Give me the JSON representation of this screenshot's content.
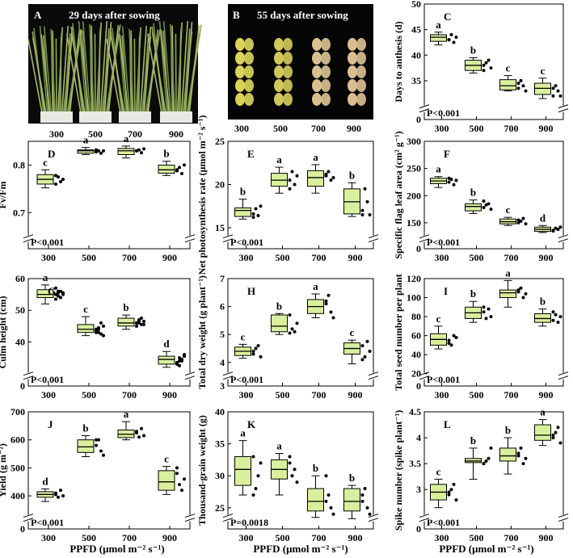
{
  "photos": [
    {
      "letter": "A",
      "caption": "29 days after sowing",
      "ticks": [
        "300",
        "500",
        "700",
        "900"
      ]
    },
    {
      "letter": "B",
      "caption": "55 days after sowing",
      "ticks": [
        "300",
        "500",
        "700",
        "900"
      ]
    }
  ],
  "xlabel": "PPFD (μmol m⁻² s⁻¹)",
  "chart_data": [
    {
      "panel": "C",
      "type": "box",
      "ylabel": "Days to anthesis (d)",
      "ylim": [
        0,
        50
      ],
      "break": [
        1,
        30
      ],
      "yticks": [
        0,
        35,
        40,
        45,
        50
      ],
      "categories": [
        "300",
        "500",
        "700",
        "900"
      ],
      "median": [
        43.5,
        38,
        34,
        33.5
      ],
      "q1": [
        42.7,
        37,
        33.2,
        32.3
      ],
      "q3": [
        44,
        39,
        35.2,
        34.5
      ],
      "whisker_low": [
        42,
        36.5,
        33,
        31.5
      ],
      "whisker_high": [
        44.5,
        39.5,
        36,
        35.5
      ],
      "letters": [
        "a",
        "b",
        "c",
        "c"
      ],
      "p_value": "P<0.001",
      "points": [
        [
          43,
          44,
          42.5,
          43.5,
          43
        ],
        [
          37,
          38.5,
          39,
          37.5,
          38
        ],
        [
          33.5,
          35,
          34,
          33,
          34.5
        ],
        [
          32,
          34,
          33,
          32,
          33.5
        ]
      ]
    },
    {
      "panel": "D",
      "type": "box",
      "ylabel": "Fv/Fm",
      "ylim": [
        0,
        0.85
      ],
      "break": [
        0.02,
        0.65
      ],
      "yticks": [
        0.7,
        0.8
      ],
      "categories": [
        "300",
        "500",
        "700",
        "900"
      ],
      "median": [
        0.77,
        0.83,
        0.83,
        0.79
      ],
      "q1": [
        0.76,
        0.825,
        0.822,
        0.783
      ],
      "q3": [
        0.78,
        0.832,
        0.835,
        0.8
      ],
      "whisker_low": [
        0.752,
        0.822,
        0.815,
        0.778
      ],
      "whisker_high": [
        0.79,
        0.837,
        0.84,
        0.808
      ],
      "letters": [
        "c",
        "a",
        "a",
        "b"
      ],
      "p_value": "P<0.001",
      "points": [
        [
          0.76,
          0.775,
          0.765,
          0.77,
          0.778
        ],
        [
          0.828,
          0.83,
          0.825,
          0.83,
          0.832
        ],
        [
          0.83,
          0.832,
          0.826,
          0.834,
          0.83
        ],
        [
          0.79,
          0.795,
          0.782,
          0.8,
          0.788
        ]
      ]
    },
    {
      "panel": "E",
      "type": "box",
      "ylabel": "Net photosynthesis rate (μmol m⁻² s⁻¹)",
      "ylim": [
        0,
        25
      ],
      "break": [
        0.5,
        14
      ],
      "yticks": [
        15,
        20,
        25
      ],
      "categories": [
        "300",
        "500",
        "700",
        "900"
      ],
      "median": [
        17,
        20.5,
        20.8,
        18
      ],
      "q1": [
        16.3,
        19.8,
        19.8,
        16.6
      ],
      "q3": [
        17.3,
        21.3,
        21.6,
        19.5
      ],
      "whisker_low": [
        16,
        19,
        19,
        16.3
      ],
      "whisker_high": [
        18.3,
        22,
        22.3,
        20.2
      ],
      "letters": [
        "b",
        "a",
        "a",
        "b"
      ],
      "p_value": "P<0.001",
      "points": [
        [
          16.6,
          17.2,
          16.4,
          17.5,
          16.2
        ],
        [
          20.5,
          21.5,
          20,
          21,
          19.5
        ],
        [
          21,
          21.5,
          20.5,
          20.8,
          21.2
        ],
        [
          17,
          19.5,
          18,
          16.5,
          16.5
        ]
      ]
    },
    {
      "panel": "F",
      "type": "box",
      "ylabel": "Specific flag leaf area (cm² g⁻¹)",
      "ylim": [
        0,
        300
      ],
      "break": [
        6,
        125
      ],
      "yticks": [
        0,
        150,
        200,
        250,
        300
      ],
      "categories": [
        "300",
        "500",
        "700",
        "900"
      ],
      "median": [
        227,
        180,
        152,
        138
      ],
      "q1": [
        222,
        172,
        148,
        134
      ],
      "q3": [
        232,
        185,
        157,
        142
      ],
      "whisker_low": [
        215,
        167,
        145,
        132
      ],
      "whisker_high": [
        235,
        192,
        160,
        145
      ],
      "letters": [
        "a",
        "b",
        "c",
        "d"
      ],
      "p_value": "P<0.001",
      "points": [
        [
          225,
          230,
          220,
          228,
          232
        ],
        [
          178,
          183,
          185,
          175,
          190
        ],
        [
          150,
          153,
          158,
          148,
          155
        ],
        [
          136,
          140,
          138,
          142,
          135
        ]
      ]
    },
    {
      "panel": "G",
      "type": "box",
      "ylabel": "Culm height (cm)",
      "ylim": [
        0,
        60
      ],
      "break": [
        1,
        30
      ],
      "yticks": [
        0,
        40,
        50,
        60
      ],
      "categories": [
        "300",
        "500",
        "700",
        "900"
      ],
      "median": [
        55,
        44,
        46,
        34.5
      ],
      "q1": [
        54,
        43,
        45,
        33
      ],
      "q3": [
        56.5,
        45.5,
        47.5,
        35.5
      ],
      "whisker_low": [
        52,
        42,
        44,
        32
      ],
      "whisker_high": [
        58,
        48,
        48.5,
        37
      ],
      "letters": [
        "a",
        "c",
        "b",
        "d"
      ],
      "p_value": "P<0.001",
      "points": [
        [
          55,
          56,
          54,
          55.5,
          57,
          54.5,
          56,
          55,
          53.5,
          55.5
        ],
        [
          43,
          44.5,
          42.5,
          45,
          43.5,
          44,
          46,
          42,
          44,
          43
        ],
        [
          46,
          47,
          45.5,
          46.5,
          45,
          46,
          47.5,
          45.5,
          46,
          46.5
        ],
        [
          33,
          35,
          34,
          36,
          33.5,
          32.5,
          34.5,
          35.5,
          33,
          34
        ]
      ]
    },
    {
      "panel": "H",
      "type": "box",
      "ylabel": "Total dry weight (g plant⁻¹)",
      "ylim": [
        3,
        7
      ],
      "break": [
        3.05,
        3.6
      ],
      "yticks": [
        3,
        4,
        5,
        6,
        7
      ],
      "categories": [
        "300",
        "500",
        "700",
        "900"
      ],
      "median": [
        4.4,
        5.3,
        6,
        4.5
      ],
      "q1": [
        4.25,
        5.1,
        5.75,
        4.3
      ],
      "q3": [
        4.55,
        5.7,
        6.25,
        4.7
      ],
      "whisker_low": [
        4.15,
        5,
        5.6,
        3.95
      ],
      "whisker_high": [
        4.65,
        5.75,
        6.45,
        4.8
      ],
      "letters": [
        "c",
        "b",
        "a",
        "c"
      ],
      "p_value": "P<0.001",
      "points": [
        [
          4.3,
          4.5,
          4.6,
          4.2,
          4.4
        ],
        [
          5.7,
          5.2,
          5.1,
          5.4,
          5.05
        ],
        [
          6.2,
          6.4,
          5.8,
          5.6,
          6.1
        ],
        [
          4.6,
          4.2,
          4.75,
          4.4,
          4.1
        ]
      ]
    },
    {
      "panel": "I",
      "type": "box",
      "ylabel": "Total seed number per plant",
      "ylim": [
        0,
        120
      ],
      "break": [
        2,
        20
      ],
      "yticks": [
        0,
        20,
        40,
        60,
        80,
        100,
        120
      ],
      "categories": [
        "300",
        "500",
        "700",
        "900"
      ],
      "median": [
        56,
        84,
        105,
        78
      ],
      "q1": [
        50,
        78,
        100,
        74
      ],
      "q3": [
        62,
        90,
        108,
        83
      ],
      "whisker_low": [
        46,
        74,
        90,
        70
      ],
      "whisker_high": [
        70,
        96,
        118,
        88
      ],
      "letters": [
        "c",
        "b",
        "a",
        "b"
      ],
      "p_value": "P<0.001",
      "points": [
        [
          55,
          50,
          60,
          58,
          52
        ],
        [
          85,
          78,
          88,
          80,
          90
        ],
        [
          106,
          110,
          100,
          104,
          108
        ],
        [
          76,
          82,
          74,
          80,
          85
        ]
      ]
    },
    {
      "panel": "J",
      "type": "box",
      "ylabel": "Yield (g m⁻²)",
      "ylim": [
        0,
        700
      ],
      "break": [
        10,
        330
      ],
      "yticks": [
        0,
        400,
        500,
        600,
        700
      ],
      "categories": [
        "300",
        "500",
        "700",
        "900"
      ],
      "median": [
        405,
        575,
        620,
        450
      ],
      "q1": [
        395,
        555,
        608,
        420
      ],
      "q3": [
        415,
        600,
        635,
        490
      ],
      "whisker_low": [
        380,
        540,
        600,
        405
      ],
      "whisker_high": [
        425,
        615,
        665,
        505
      ],
      "letters": [
        "d",
        "b",
        "a",
        "c"
      ],
      "p_value": "P<0.001",
      "points": [
        [
          410,
          395,
          420,
          400,
          405
        ],
        [
          580,
          600,
          560,
          545,
          600
        ],
        [
          625,
          610,
          640,
          615,
          630
        ],
        [
          480,
          440,
          420,
          460,
          500
        ]
      ]
    },
    {
      "panel": "K",
      "type": "box",
      "ylabel": "Thousand-grain weight (g)",
      "ylim": [
        23,
        40
      ],
      "break": [
        23.2,
        23.8
      ],
      "yticks": [
        25,
        30,
        35,
        40
      ],
      "categories": [
        "300",
        "500",
        "700",
        "900"
      ],
      "median": [
        31,
        31,
        26,
        26
      ],
      "q1": [
        28.5,
        29.5,
        24.5,
        24.5
      ],
      "q3": [
        33,
        32.5,
        28,
        28
      ],
      "whisker_low": [
        27,
        27,
        23.5,
        23.3
      ],
      "whisker_high": [
        35.5,
        33.5,
        30,
        28.5
      ],
      "letters": [
        "a",
        "a",
        "b",
        "b"
      ],
      "p_value": "P=0.0018",
      "points": [
        [
          33,
          28,
          30,
          32,
          27
        ],
        [
          33,
          30,
          31,
          29,
          32
        ],
        [
          30,
          27,
          25,
          24,
          26
        ],
        [
          27,
          28,
          25,
          24,
          26
        ]
      ]
    },
    {
      "panel": "L",
      "type": "box",
      "ylabel": "Spike number (spike plant⁻¹)",
      "ylim": [
        0,
        4.5
      ],
      "break": [
        0.1,
        2.5
      ],
      "yticks": [
        0,
        3.0,
        3.5,
        4.0,
        4.5
      ],
      "categories": [
        "300",
        "500",
        "700",
        "900"
      ],
      "median": [
        2.95,
        3.55,
        3.65,
        4.05
      ],
      "q1": [
        2.8,
        3.52,
        3.55,
        3.95
      ],
      "q3": [
        3.1,
        3.6,
        3.8,
        4.25
      ],
      "whisker_low": [
        2.65,
        3.2,
        3.3,
        3.85
      ],
      "whisker_high": [
        3.2,
        3.8,
        4.0,
        4.35
      ],
      "letters": [
        "c",
        "b",
        "b",
        "a"
      ],
      "p_value": "P<0.001",
      "points": [
        [
          2.9,
          3.0,
          3.1,
          2.8,
          2.95
        ],
        [
          3.5,
          3.55,
          3.6,
          3.8,
          3.5
        ],
        [
          3.7,
          3.8,
          3.5,
          3.6,
          3.65
        ],
        [
          4.0,
          4.1,
          4.2,
          3.9,
          4.05
        ]
      ]
    }
  ]
}
